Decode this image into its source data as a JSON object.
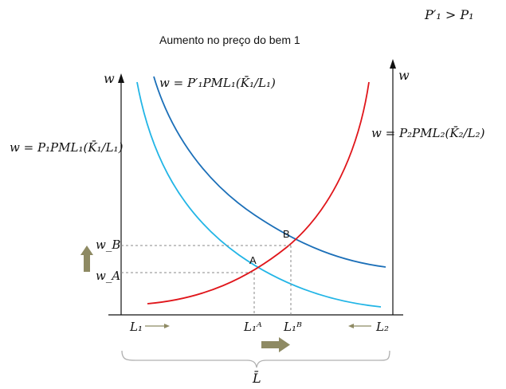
{
  "header": {
    "condition": "P′₁ > P₁",
    "title": "Aumento no preço do bem 1"
  },
  "axes": {
    "left_y_label": "w",
    "right_y_label": "w",
    "total_label": "L̄"
  },
  "curves": {
    "demand_new": {
      "label": "w = P′₁PML₁(K̄₁/L₁)",
      "color": "#1b6fb8"
    },
    "demand_old": {
      "label": "w = P₁PML₁(K̄₁/L₁)",
      "color": "#22b5e6"
    },
    "demand_sector2": {
      "label": "w = P₂PML₂(K̄₂/L₂)",
      "color": "#e0161b"
    }
  },
  "points": {
    "A": {
      "label": "A",
      "w_label": "w_A",
      "L_label": "L₁ᴬ"
    },
    "B": {
      "label": "B",
      "w_label": "w_B",
      "L_label": "L₁ᴮ"
    }
  },
  "x_labels": {
    "left": "L₁",
    "right": "L₂"
  },
  "arrows": {
    "color": "#8e8a63"
  }
}
